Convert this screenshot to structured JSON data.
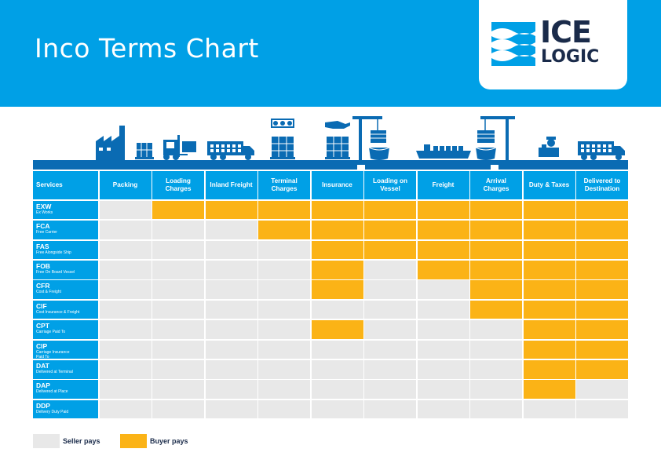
{
  "title": "Inco Terms Chart",
  "logo": {
    "line1": "ICE",
    "line2": "LOGIC"
  },
  "colors": {
    "blue": "#00a0e6",
    "seller": "#e8e8e8",
    "buyer": "#fbb316",
    "navy": "#1a2b4a"
  },
  "icons": [
    "factory-icon",
    "pallet-icon",
    "forklift-icon",
    "truck-icon",
    "crate-money-icon",
    "crate-hand-icon",
    "crane-unload-icon",
    "cargo-ship-icon",
    "crane-load-icon",
    "customs-officer-icon",
    "delivery-truck-icon"
  ],
  "chart_data": {
    "type": "table",
    "row_header": "Services",
    "columns": [
      "Packing",
      "Loading\nCharges",
      "Inland Freight",
      "Terminal\nCharges",
      "Insurance",
      "Loading on\nVessel",
      "Freight",
      "Arrival\nCharges",
      "Duty & Taxes",
      "Delivered to\nDestination"
    ],
    "rows": [
      {
        "code": "EXW",
        "name": "Ex Works",
        "buyer": [
          0,
          1,
          1,
          1,
          1,
          1,
          1,
          1,
          1,
          1
        ]
      },
      {
        "code": "FCA",
        "name": "Free Carrier",
        "buyer": [
          0,
          0,
          0,
          1,
          1,
          1,
          1,
          1,
          1,
          1
        ]
      },
      {
        "code": "FAS",
        "name": "Free Alongside Ship",
        "buyer": [
          0,
          0,
          0,
          0,
          1,
          1,
          1,
          1,
          1,
          1
        ]
      },
      {
        "code": "FOB",
        "name": "Free On Board Vessel",
        "buyer": [
          0,
          0,
          0,
          0,
          1,
          0,
          1,
          1,
          1,
          1
        ]
      },
      {
        "code": "CFR",
        "name": "Cost & Freight",
        "buyer": [
          0,
          0,
          0,
          0,
          1,
          0,
          0,
          1,
          1,
          1
        ]
      },
      {
        "code": "CIF",
        "name": "Cost Insurance & Freight",
        "buyer": [
          0,
          0,
          0,
          0,
          0,
          0,
          0,
          1,
          1,
          1
        ]
      },
      {
        "code": "CPT",
        "name": "Carriage Paid To",
        "buyer": [
          0,
          0,
          0,
          0,
          1,
          0,
          0,
          0,
          1,
          1
        ]
      },
      {
        "code": "CIP",
        "name": "Carriage Insurance\nPaid To",
        "buyer": [
          0,
          0,
          0,
          0,
          0,
          0,
          0,
          0,
          1,
          1
        ]
      },
      {
        "code": "DAT",
        "name": "Delivered at Terminal",
        "buyer": [
          0,
          0,
          0,
          0,
          0,
          0,
          0,
          0,
          1,
          1
        ]
      },
      {
        "code": "DAP",
        "name": "Delivered at Place",
        "buyer": [
          0,
          0,
          0,
          0,
          0,
          0,
          0,
          0,
          1,
          0
        ]
      },
      {
        "code": "DDP",
        "name": "Delivery Duty Paid",
        "buyer": [
          0,
          0,
          0,
          0,
          0,
          0,
          0,
          0,
          0,
          0
        ]
      }
    ],
    "legend": [
      {
        "label": "Seller pays",
        "color": "#e8e8e8"
      },
      {
        "label": "Buyer pays",
        "color": "#fbb316"
      }
    ]
  }
}
